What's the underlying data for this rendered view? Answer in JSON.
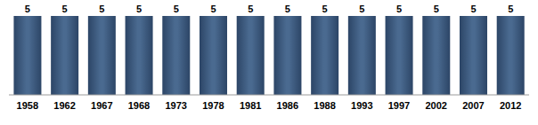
{
  "chart_data": {
    "type": "bar",
    "categories": [
      "1958",
      "1962",
      "1967",
      "1968",
      "1973",
      "1978",
      "1981",
      "1986",
      "1988",
      "1993",
      "1997",
      "2002",
      "2007",
      "2012"
    ],
    "values": [
      5,
      5,
      5,
      5,
      5,
      5,
      5,
      5,
      5,
      5,
      5,
      5,
      5,
      5
    ],
    "color": "#4a6a90",
    "ylim": [
      0,
      5
    ],
    "data_labels": true,
    "tick_labels": "x",
    "grid": false
  }
}
